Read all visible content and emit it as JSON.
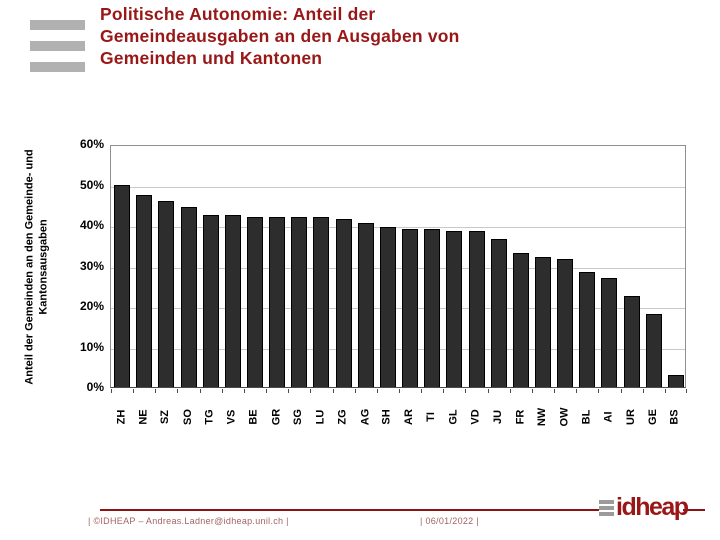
{
  "slide": {
    "title_lines": [
      "Politische Autonomie: Anteil der",
      "Gemeindeausgaben an den Ausgaben von",
      "Gemeinden und Kantonen"
    ]
  },
  "footer": {
    "left": "| ©IDHEAP – Andreas.Ladner@idheap.unil.ch |",
    "date": "| 06/01/2022 |",
    "logo_text": "idheap"
  },
  "colors": {
    "title_red": "#991717",
    "bar_fill": "#2d2d2d",
    "gridline": "#c9c9c9",
    "footer_rule_red": "#8e1414",
    "footer_text": "#a36363",
    "deco_gray": "#b1b1b1"
  },
  "chart_data": {
    "type": "bar",
    "title": "Politische Autonomie: Anteil der Gemeindeausgaben an den Ausgaben von Gemeinden und Kantonen",
    "categories": [
      "ZH",
      "NE",
      "SZ",
      "SO",
      "TG",
      "VS",
      "BE",
      "GR",
      "SG",
      "LU",
      "ZG",
      "AG",
      "SH",
      "AR",
      "TI",
      "GL",
      "VD",
      "JU",
      "FR",
      "NW",
      "OW",
      "BL",
      "AI",
      "UR",
      "GE",
      "BS"
    ],
    "values": [
      50,
      47.5,
      46,
      44.5,
      42.5,
      42.5,
      42,
      42,
      42,
      42,
      41.5,
      40.5,
      39.5,
      39,
      39,
      38.5,
      38.5,
      36.5,
      33,
      32,
      31.5,
      28.5,
      27,
      22.5,
      18,
      3
    ],
    "unit": "%",
    "xlabel": "",
    "ylabel_lines": [
      "Anteil der Gemeinden an den Gemeinde- und",
      "Kantonsausgaben"
    ],
    "ylim": [
      0,
      60
    ],
    "yticks": [
      0,
      10,
      20,
      30,
      40,
      50,
      60
    ],
    "grid": true,
    "legend": "none"
  }
}
